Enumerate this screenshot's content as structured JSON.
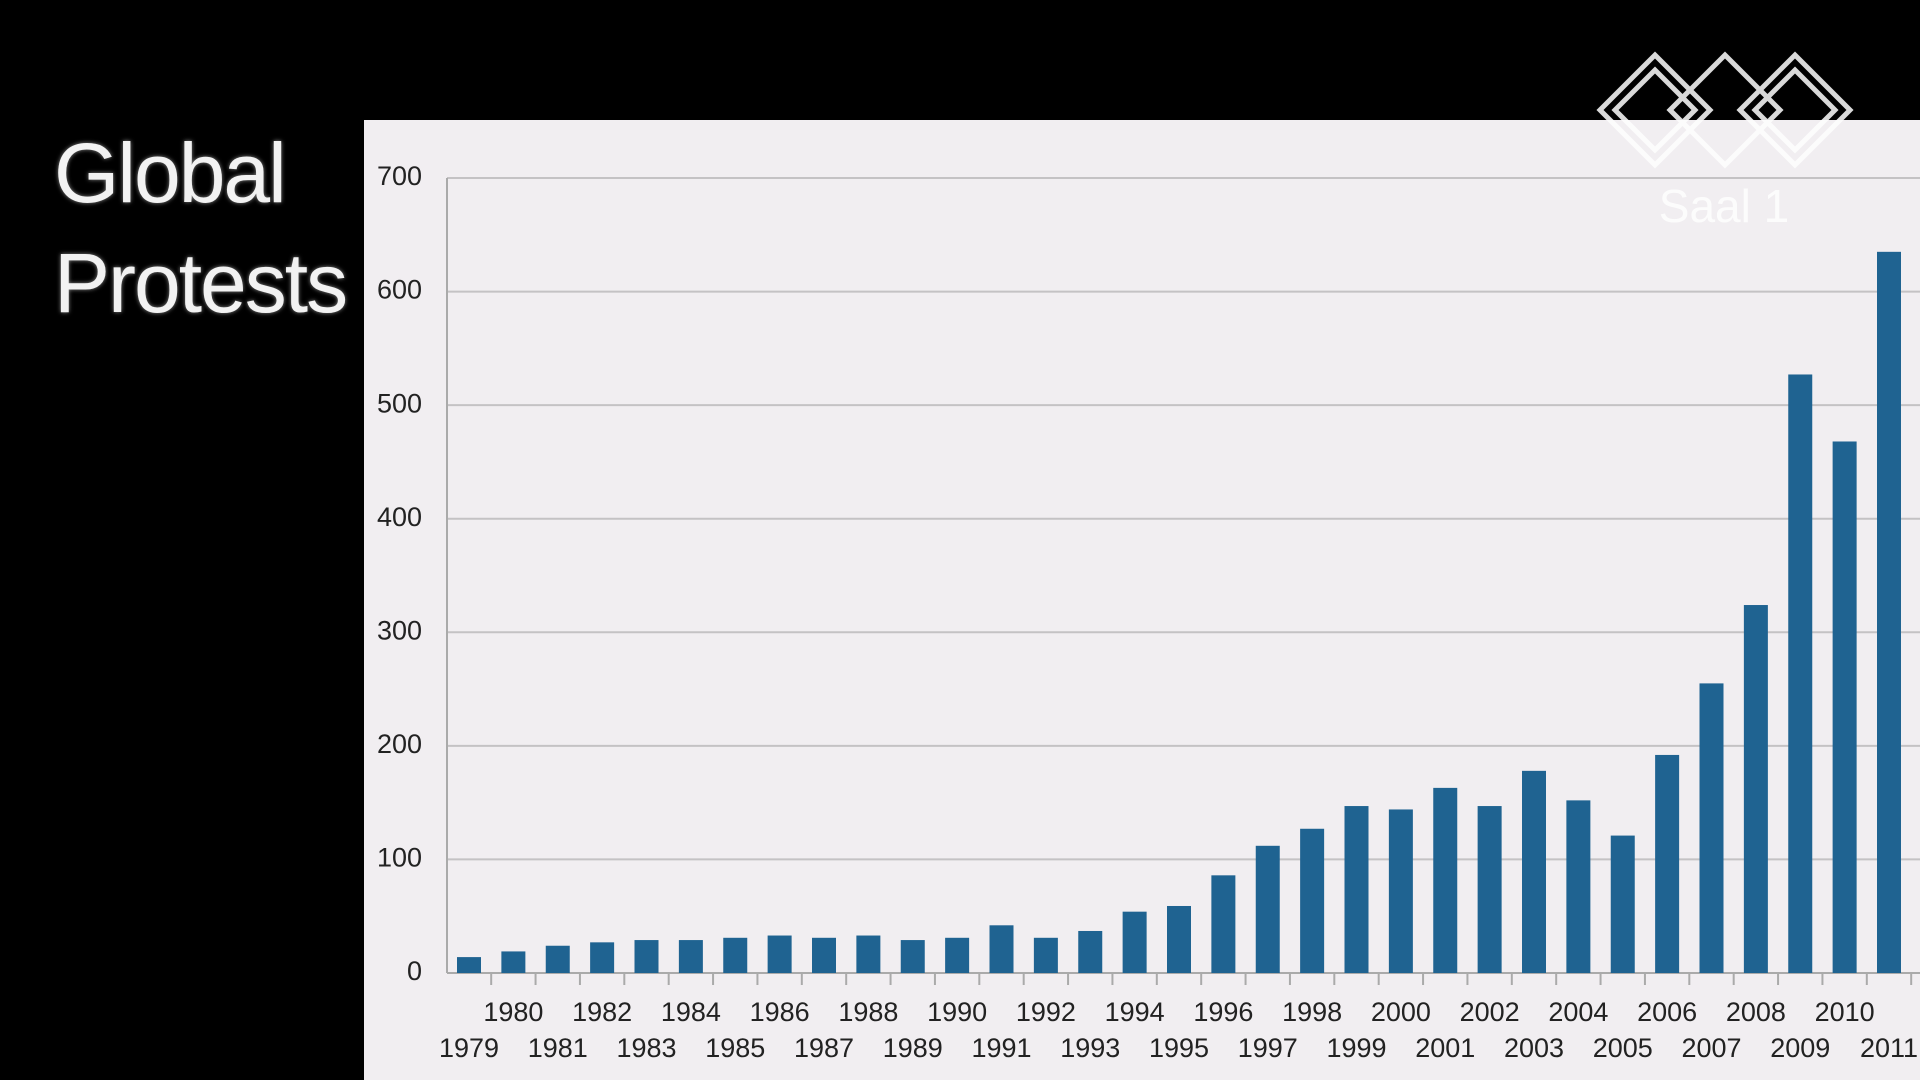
{
  "chart_data": {
    "type": "bar",
    "title": "Global Protests",
    "logo": "Saal 1",
    "categories": [
      "1979",
      "1980",
      "1981",
      "1982",
      "1983",
      "1984",
      "1985",
      "1986",
      "1987",
      "1988",
      "1989",
      "1990",
      "1991",
      "1992",
      "1993",
      "1994",
      "1995",
      "1996",
      "1997",
      "1998",
      "1999",
      "2000",
      "2001",
      "2002",
      "2003",
      "2004",
      "2005",
      "2006",
      "2007",
      "2008",
      "2009",
      "2010",
      "2011"
    ],
    "values": [
      14,
      19,
      24,
      27,
      29,
      29,
      31,
      33,
      31,
      33,
      29,
      31,
      42,
      31,
      37,
      54,
      59,
      86,
      112,
      127,
      147,
      144,
      163,
      147,
      178,
      152,
      121,
      192,
      255,
      324,
      527,
      468,
      635
    ],
    "color": "#1f6391",
    "ylim": [
      0,
      700
    ],
    "yticks": [
      0,
      100,
      200,
      300,
      400,
      500,
      600,
      700
    ],
    "grid": true
  }
}
